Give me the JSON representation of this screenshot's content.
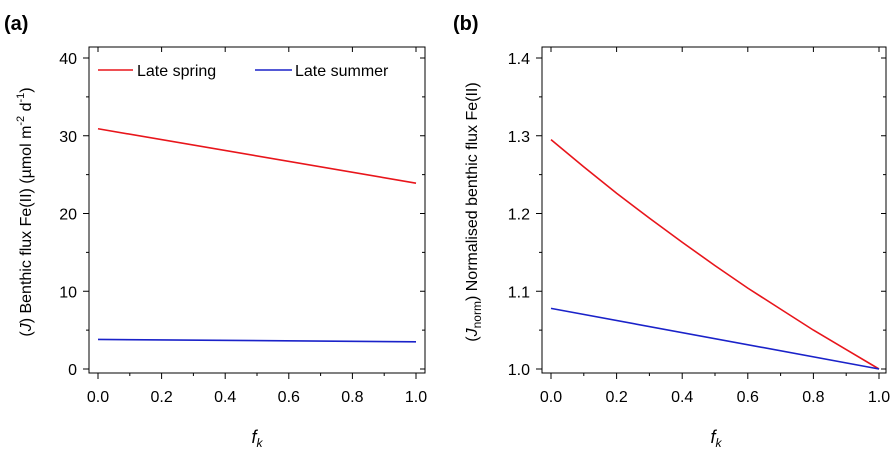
{
  "chart_data": [
    {
      "type": "line",
      "panel_label": "(a)",
      "title": "",
      "xlabel": "f",
      "xlabel_sub": "k",
      "ylabel_prefix": "(",
      "ylabel_italic": "J",
      "ylabel_main": ") Benthic flux Fe(II) (µmol m",
      "ylabel_sup1": "-2",
      "ylabel_mid": " d",
      "ylabel_sup2": "-1",
      "ylabel_end": ")",
      "xlim": [
        0.0,
        1.0
      ],
      "ylim": [
        0,
        40
      ],
      "xticks": [
        0.0,
        0.2,
        0.4,
        0.6,
        0.8,
        1.0
      ],
      "xtick_labels": [
        "0.0",
        "0.2",
        "0.4",
        "0.6",
        "0.8",
        "1.0"
      ],
      "yticks": [
        0,
        10,
        20,
        30,
        40
      ],
      "ytick_labels": [
        "0",
        "10",
        "20",
        "30",
        "40"
      ],
      "legend_position": "top",
      "series": [
        {
          "name": "Late spring",
          "color": "#e8151b",
          "x": [
            0.0,
            1.0
          ],
          "y": [
            30.9,
            23.9
          ]
        },
        {
          "name": "Late summer",
          "color": "#1a22c9",
          "x": [
            0.0,
            1.0
          ],
          "y": [
            3.8,
            3.5
          ]
        }
      ]
    },
    {
      "type": "line",
      "panel_label": "(b)",
      "title": "",
      "xlabel": "f",
      "xlabel_sub": "k",
      "ylabel_prefix": "(",
      "ylabel_italic": "J",
      "ylabel_sub": "norm",
      "ylabel_main": ") Normalised benthic flux Fe(II)",
      "xlim": [
        0.0,
        1.0
      ],
      "ylim": [
        1.0,
        1.4
      ],
      "xticks": [
        0.0,
        0.2,
        0.4,
        0.6,
        0.8,
        1.0
      ],
      "xtick_labels": [
        "0.0",
        "0.2",
        "0.4",
        "0.6",
        "0.8",
        "1.0"
      ],
      "yticks": [
        1.0,
        1.1,
        1.2,
        1.3,
        1.4
      ],
      "ytick_labels": [
        "1.0",
        "1.1",
        "1.2",
        "1.3",
        "1.4"
      ],
      "series": [
        {
          "name": "Late spring",
          "color": "#e8151b",
          "x": [
            0.0,
            0.1,
            0.2,
            0.3,
            0.4,
            0.5,
            0.6,
            0.7,
            0.8,
            0.9,
            1.0
          ],
          "y": [
            1.295,
            1.26,
            1.226,
            1.194,
            1.163,
            1.133,
            1.104,
            1.077,
            1.05,
            1.025,
            1.0
          ]
        },
        {
          "name": "Late summer",
          "color": "#1a22c9",
          "x": [
            0.0,
            1.0
          ],
          "y": [
            1.078,
            1.0
          ]
        }
      ]
    }
  ]
}
